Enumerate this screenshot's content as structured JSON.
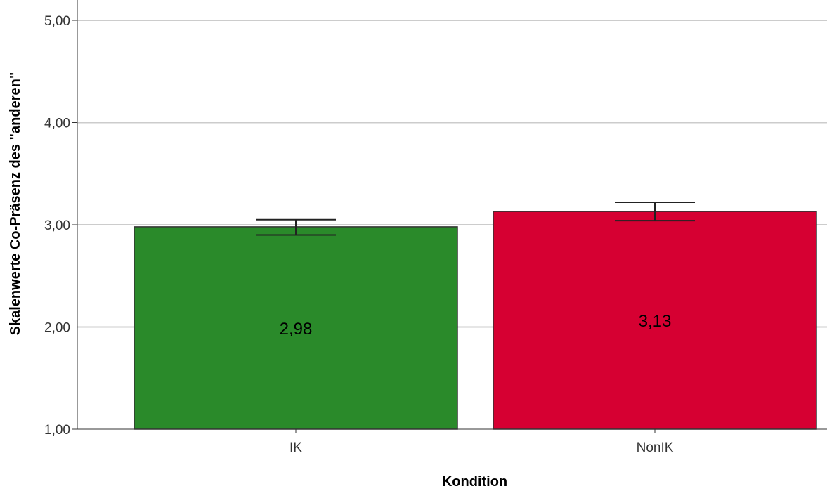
{
  "chart_data": {
    "type": "bar",
    "categories": [
      "IK",
      "NonIK"
    ],
    "values": [
      2.98,
      3.13
    ],
    "value_labels": [
      "2,98",
      "3,13"
    ],
    "error_bars": [
      {
        "low": 2.9,
        "high": 3.05
      },
      {
        "low": 3.04,
        "high": 3.22
      }
    ],
    "colors": [
      "#2a8a2a",
      "#d60032"
    ],
    "xlabel": "Kondition",
    "ylabel": "Skalenwerte Co-Präsenz des \"anderen\"",
    "ylim": [
      1.0,
      5.0
    ],
    "yticks": [
      1.0,
      2.0,
      3.0,
      4.0,
      5.0
    ],
    "ytick_labels": [
      "1,00",
      "2,00",
      "3,00",
      "4,00",
      "5,00"
    ],
    "grid": true,
    "grid_color": "#cccccc",
    "bar_outline_color": "#333333"
  }
}
